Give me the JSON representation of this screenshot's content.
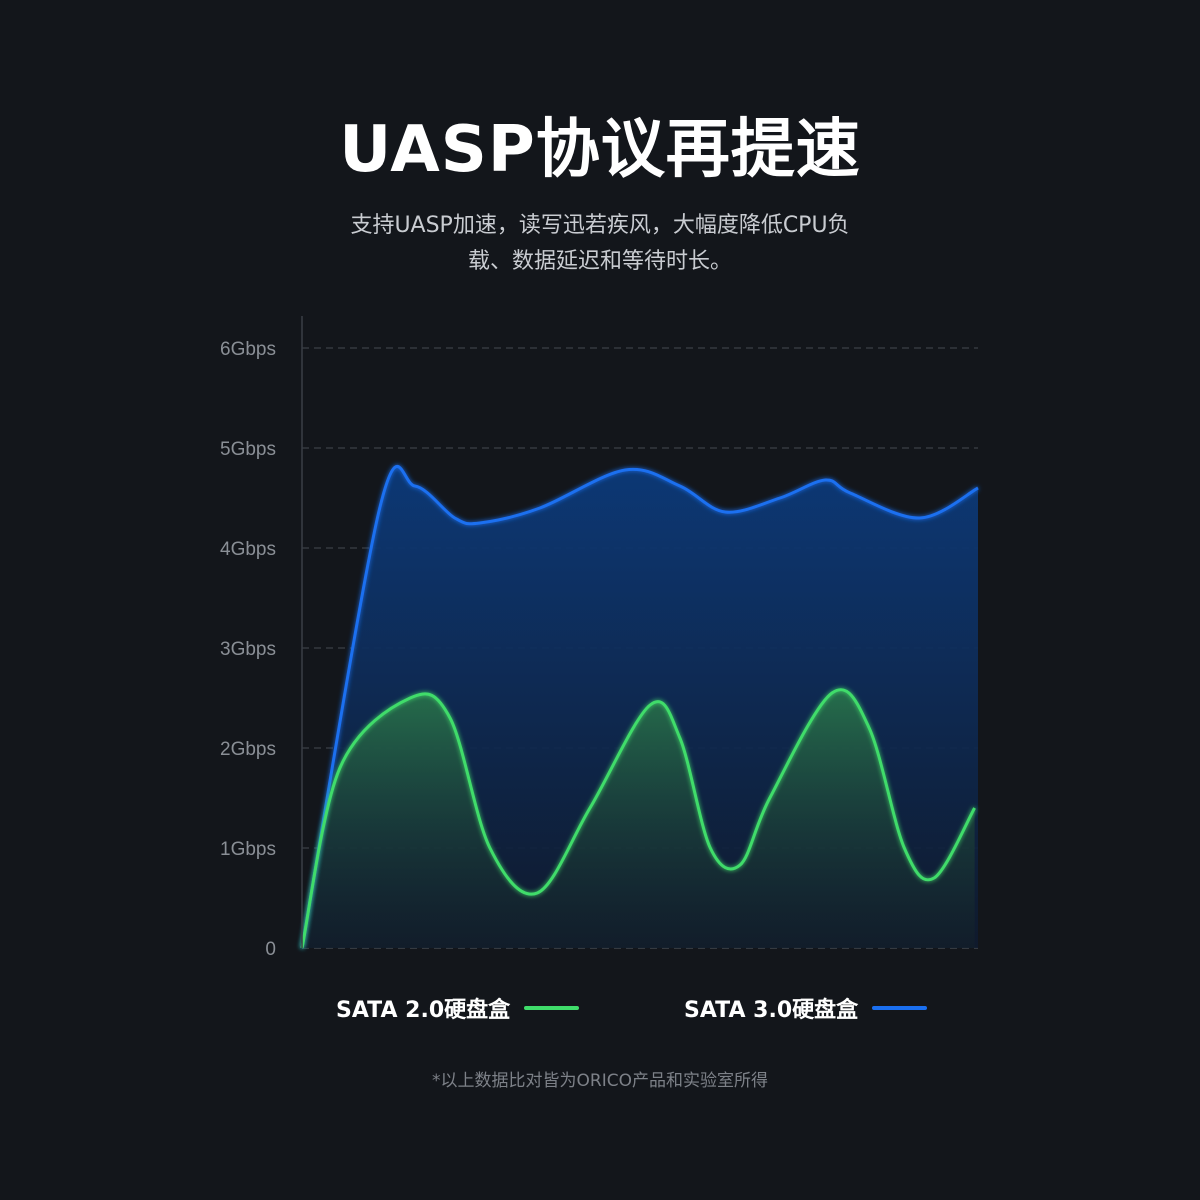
{
  "header": {
    "title": "UASP协议再提速",
    "subtitle_line1": "支持UASP加速，读写迅若疾风，大幅度降低CPU负",
    "subtitle_line2": "载、数据延迟和等待时长。"
  },
  "footnote": "*以上数据比对皆为ORICO产品和实验室所得",
  "chart_data": {
    "type": "area",
    "title": "",
    "xlabel": "",
    "ylabel": "",
    "ylim": [
      0,
      6
    ],
    "xlim": [
      0,
      100
    ],
    "grid": true,
    "legend_position": "bottom",
    "y_tick_labels": [
      "0",
      "1Gbps",
      "2Gbps",
      "3Gbps",
      "4Gbps",
      "5Gbps",
      "6Gbps"
    ],
    "series": [
      {
        "name": "SATA 3.0硬盘盒",
        "color": "#1a6ff0",
        "x": [
          0,
          11.5,
          16.7,
          22.6,
          26.3,
          35.2,
          47.8,
          55.9,
          62.6,
          70.7,
          77.4,
          81.1,
          91.4,
          100
        ],
        "values": [
          0,
          4.4,
          4.62,
          4.3,
          4.25,
          4.4,
          4.78,
          4.62,
          4.36,
          4.5,
          4.68,
          4.55,
          4.3,
          4.6
        ]
      },
      {
        "name": "SATA 2.0硬盘盒",
        "color": "#3fdc6a",
        "x": [
          0,
          5.6,
          16,
          21.9,
          27.8,
          34.8,
          42.6,
          51.5,
          55.9,
          60.4,
          64.8,
          69.2,
          78.4,
          83.9,
          89.1,
          93.5,
          99.5
        ],
        "values": [
          0,
          1.8,
          2.5,
          2.3,
          1.0,
          0.55,
          1.4,
          2.43,
          2.1,
          1.0,
          0.83,
          1.5,
          2.55,
          2.2,
          1.0,
          0.7,
          1.4
        ]
      }
    ]
  }
}
